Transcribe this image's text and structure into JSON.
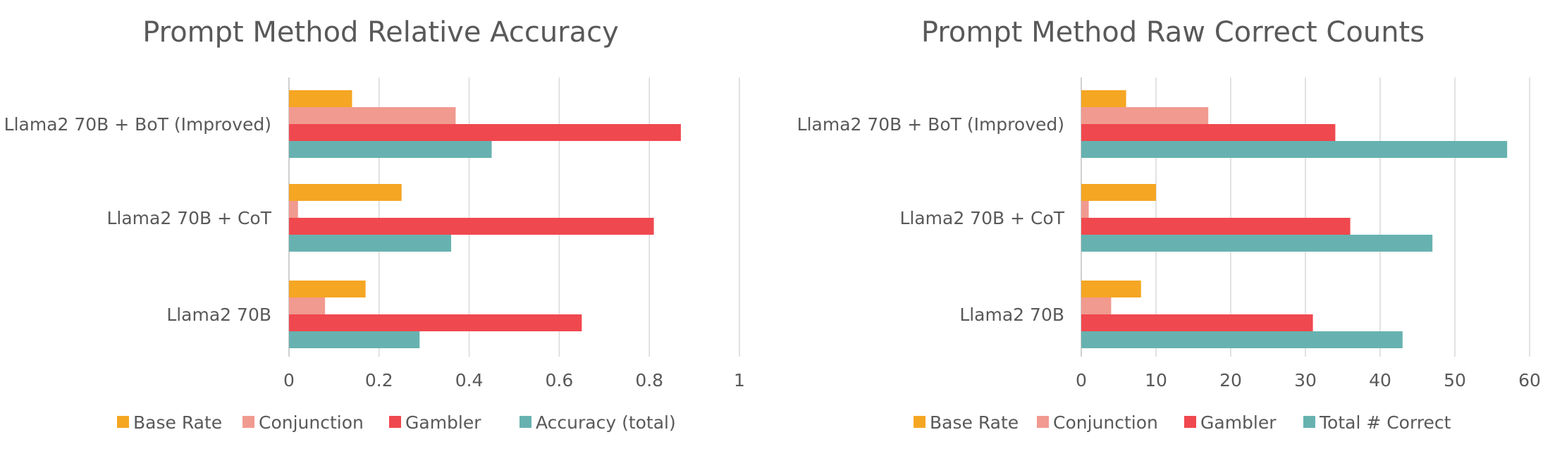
{
  "chart_data": [
    {
      "type": "bar",
      "orientation": "horizontal",
      "title": "Prompt Method Relative Accuracy",
      "categories": [
        "Llama2 70B + BoT (Improved)",
        "Llama2 70B + CoT",
        "Llama2 70B"
      ],
      "series": [
        {
          "name": "Base Rate",
          "color": "#F5A623",
          "values": [
            0.14,
            0.25,
            0.17
          ]
        },
        {
          "name": "Conjunction",
          "color": "#F19A8F",
          "values": [
            0.37,
            0.02,
            0.08
          ]
        },
        {
          "name": "Gambler",
          "color": "#F0484F",
          "values": [
            0.87,
            0.81,
            0.65
          ]
        },
        {
          "name": "Accuracy (total)",
          "color": "#67B2B0",
          "values": [
            0.45,
            0.36,
            0.29
          ]
        }
      ],
      "xlim": [
        0,
        1
      ],
      "xticks": [
        0,
        0.2,
        0.4,
        0.6,
        0.8,
        1
      ],
      "xtick_labels": [
        "0",
        "0.2",
        "0.4",
        "0.6",
        "0.8",
        "1"
      ],
      "grid": "vertical",
      "legend": "bottom"
    },
    {
      "type": "bar",
      "orientation": "horizontal",
      "title": "Prompt Method Raw Correct Counts",
      "categories": [
        "Llama2 70B + BoT (Improved)",
        "Llama2 70B + CoT",
        "Llama2 70B"
      ],
      "series": [
        {
          "name": "Base Rate",
          "color": "#F5A623",
          "values": [
            6,
            10,
            8
          ]
        },
        {
          "name": "Conjunction",
          "color": "#F19A8F",
          "values": [
            17,
            1,
            4
          ]
        },
        {
          "name": "Gambler",
          "color": "#F0484F",
          "values": [
            34,
            36,
            31
          ]
        },
        {
          "name": "Total # Correct",
          "color": "#67B2B0",
          "values": [
            57,
            47,
            43
          ]
        }
      ],
      "xlim": [
        0,
        60
      ],
      "xticks": [
        0,
        10,
        20,
        30,
        40,
        50,
        60
      ],
      "xtick_labels": [
        "0",
        "10",
        "20",
        "30",
        "40",
        "50",
        "60"
      ],
      "grid": "vertical",
      "legend": "bottom"
    }
  ]
}
